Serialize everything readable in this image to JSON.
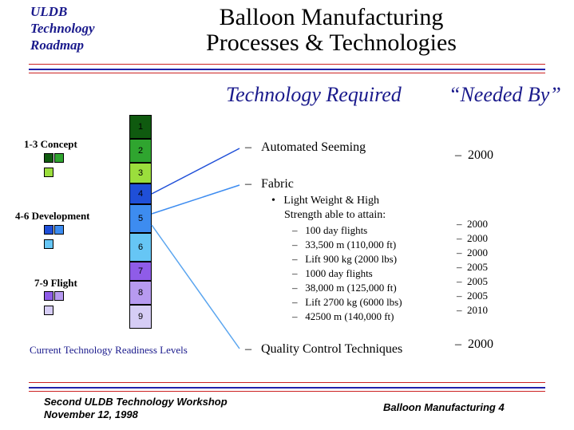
{
  "logo": {
    "line1": "ULDB",
    "line2": "Technology",
    "line3": "Roadmap"
  },
  "title": {
    "line1": "Balloon Manufacturing",
    "line2": "Processes & Technologies"
  },
  "headers": {
    "technology": "Technology Required",
    "needed_by": "“Needed By”"
  },
  "trl": {
    "levels": [
      "1",
      "2",
      "3",
      "4",
      "5",
      "6",
      "7",
      "8",
      "9"
    ],
    "groups": [
      {
        "label": "1-3  Concept"
      },
      {
        "label": "4-6  Development"
      },
      {
        "label": "7-9  Flight"
      }
    ],
    "caption": "Current Technology Readiness Levels"
  },
  "items": {
    "automated": "Automated Seeming",
    "automated_date": "2000",
    "fabric": "Fabric",
    "fabric_bullet_l1": "Light Weight & High",
    "fabric_bullet_l2": "Strength able to attain:",
    "fabric_subs": [
      {
        "text": "100 day flights",
        "date": "2000"
      },
      {
        "text": "33,500 m (110,000 ft)",
        "date": "2000"
      },
      {
        "text": "Lift 900 kg (2000 lbs)",
        "date": "2000"
      },
      {
        "text": "1000 day flights",
        "date": "2005"
      },
      {
        "text": "38,000 m (125,000 ft)",
        "date": "2005"
      },
      {
        "text": "Lift 2700 kg (6000 lbs)",
        "date": "2005"
      },
      {
        "text": "42500 m (140,000 ft)",
        "date": "2010"
      }
    ],
    "quality": "Quality Control Techniques",
    "quality_date": "2000"
  },
  "footer": {
    "workshop": "Second ULDB Technology Workshop",
    "date": "November 12, 1998",
    "page": "Balloon Manufacturing 4"
  },
  "colors": {
    "navy": "#1a1a8c",
    "rule_red": "#cc2222",
    "rule_blue": "#2222aa"
  }
}
